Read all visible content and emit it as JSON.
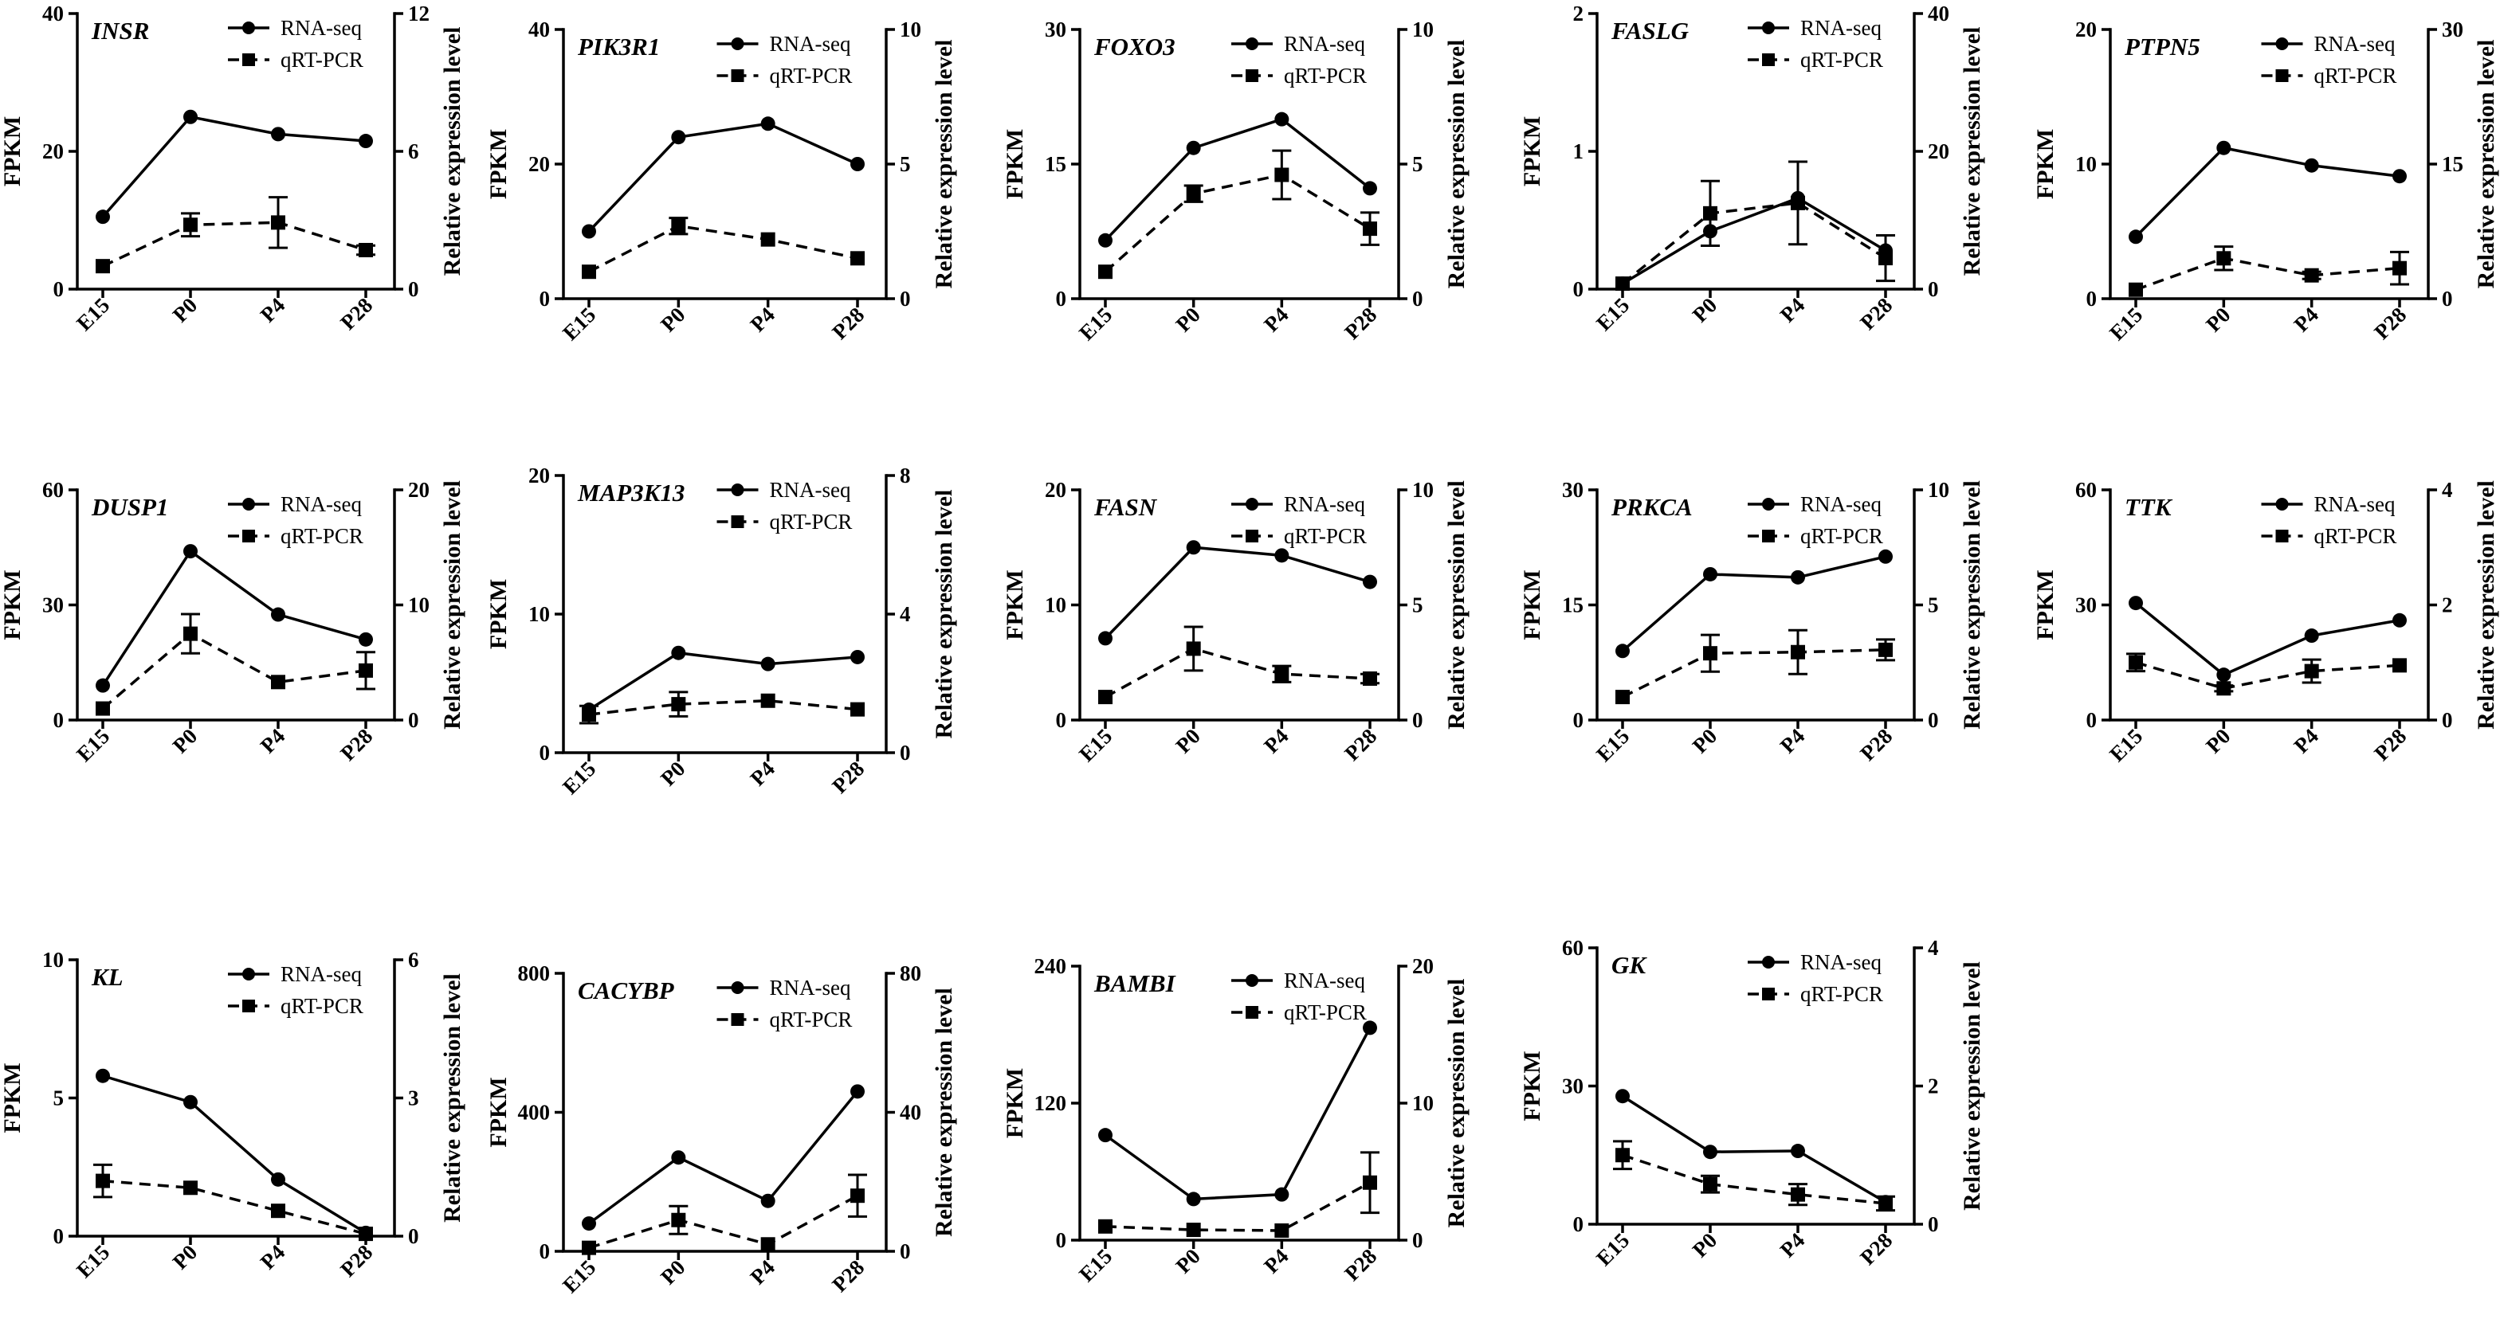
{
  "chart_data": [
    {
      "type": "line",
      "gene": "INSR",
      "categories": [
        "E15",
        "P0",
        "P4",
        "P28"
      ],
      "ylabel_left": "FPKM",
      "ylabel_right": "Relative expression level",
      "ylim_left": [
        0,
        40
      ],
      "yticks_left": [
        0,
        20,
        40
      ],
      "ylim_right": [
        0,
        12
      ],
      "yticks_right": [
        0,
        6,
        12
      ],
      "series": [
        {
          "name": "RNA-seq",
          "axis": "left",
          "values": [
            10.5,
            25,
            22.5,
            21.5
          ]
        },
        {
          "name": "qRT-PCR",
          "axis": "right",
          "values": [
            1.0,
            2.8,
            2.9,
            1.7
          ],
          "errors": [
            0,
            0.5,
            1.1,
            0.2
          ]
        }
      ]
    },
    {
      "type": "line",
      "gene": "PIK3R1",
      "categories": [
        "E15",
        "P0",
        "P4",
        "P28"
      ],
      "ylabel_left": "FPKM",
      "ylabel_right": "Relative expression level",
      "ylim_left": [
        0,
        40
      ],
      "yticks_left": [
        0,
        20,
        40
      ],
      "ylim_right": [
        0,
        10
      ],
      "yticks_right": [
        0,
        5,
        10
      ],
      "series": [
        {
          "name": "RNA-seq",
          "axis": "left",
          "values": [
            10,
            24,
            26,
            20
          ]
        },
        {
          "name": "qRT-PCR",
          "axis": "right",
          "values": [
            1.0,
            2.7,
            2.2,
            1.5
          ],
          "errors": [
            0,
            0.3,
            0,
            0
          ]
        }
      ]
    },
    {
      "type": "line",
      "gene": "FOXO3",
      "categories": [
        "E15",
        "P0",
        "P4",
        "P28"
      ],
      "ylabel_left": "FPKM",
      "ylabel_right": "Relative expression level",
      "ylim_left": [
        0,
        30
      ],
      "yticks_left": [
        0,
        15,
        30
      ],
      "ylim_right": [
        0,
        10
      ],
      "yticks_right": [
        0,
        5,
        10
      ],
      "series": [
        {
          "name": "RNA-seq",
          "axis": "left",
          "values": [
            6.5,
            16.8,
            20,
            12.3
          ]
        },
        {
          "name": "qRT-PCR",
          "axis": "right",
          "values": [
            1.0,
            3.9,
            4.6,
            2.6
          ],
          "errors": [
            0,
            0.3,
            0.9,
            0.6
          ]
        }
      ]
    },
    {
      "type": "line",
      "gene": "FASLG",
      "categories": [
        "E15",
        "P0",
        "P4",
        "P28"
      ],
      "ylabel_left": "FPKM",
      "ylabel_right": "Relative expression level",
      "ylim_left": [
        0,
        2
      ],
      "yticks_left": [
        0,
        1,
        2
      ],
      "ylim_right": [
        0,
        40
      ],
      "yticks_right": [
        0,
        20,
        40
      ],
      "series": [
        {
          "name": "RNA-seq",
          "axis": "left",
          "values": [
            0.04,
            0.42,
            0.66,
            0.28
          ]
        },
        {
          "name": "qRT-PCR",
          "axis": "right",
          "values": [
            0.8,
            11,
            12.5,
            4.5
          ],
          "errors": [
            0,
            4.7,
            6,
            3.3
          ]
        }
      ]
    },
    {
      "type": "line",
      "gene": "PTPN5",
      "categories": [
        "E15",
        "P0",
        "P4",
        "P28"
      ],
      "ylabel_left": "FPKM",
      "ylabel_right": "Relative expression level",
      "ylim_left": [
        0,
        20
      ],
      "yticks_left": [
        0,
        10,
        20
      ],
      "ylim_right": [
        0,
        30
      ],
      "yticks_right": [
        0,
        15,
        30
      ],
      "series": [
        {
          "name": "RNA-seq",
          "axis": "left",
          "values": [
            4.6,
            11.2,
            9.9,
            9.1
          ]
        },
        {
          "name": "qRT-PCR",
          "axis": "right",
          "values": [
            1.0,
            4.5,
            2.6,
            3.4
          ],
          "errors": [
            0,
            1.3,
            0.4,
            1.8
          ]
        }
      ]
    },
    {
      "type": "line",
      "gene": "DUSP1",
      "categories": [
        "E15",
        "P0",
        "P4",
        "P28"
      ],
      "ylabel_left": "FPKM",
      "ylabel_right": "Relative expression level",
      "ylim_left": [
        0,
        60
      ],
      "yticks_left": [
        0,
        30,
        60
      ],
      "ylim_right": [
        0,
        20
      ],
      "yticks_right": [
        0,
        10,
        20
      ],
      "series": [
        {
          "name": "RNA-seq",
          "axis": "left",
          "values": [
            9,
            44,
            27.5,
            21
          ]
        },
        {
          "name": "qRT-PCR",
          "axis": "right",
          "values": [
            1.0,
            7.5,
            3.3,
            4.3
          ],
          "errors": [
            0,
            1.7,
            0,
            1.6
          ]
        }
      ]
    },
    {
      "type": "line",
      "gene": "MAP3K13",
      "categories": [
        "E15",
        "P0",
        "P4",
        "P28"
      ],
      "ylabel_left": "FPKM",
      "ylabel_right": "Relative expression level",
      "ylim_left": [
        0,
        20
      ],
      "yticks_left": [
        0,
        10,
        20
      ],
      "ylim_right": [
        0,
        8
      ],
      "yticks_right": [
        0,
        4,
        8
      ],
      "series": [
        {
          "name": "RNA-seq",
          "axis": "left",
          "values": [
            3.1,
            7.2,
            6.4,
            6.9
          ]
        },
        {
          "name": "qRT-PCR",
          "axis": "right",
          "values": [
            1.1,
            1.4,
            1.5,
            1.25
          ],
          "errors": [
            0.25,
            0.35,
            0,
            0
          ]
        }
      ]
    },
    {
      "type": "line",
      "gene": "FASN",
      "categories": [
        "E15",
        "P0",
        "P4",
        "P28"
      ],
      "ylabel_left": "FPKM",
      "ylabel_right": "Relative expression level",
      "ylim_left": [
        0,
        20
      ],
      "yticks_left": [
        0,
        10,
        20
      ],
      "ylim_right": [
        0,
        10
      ],
      "yticks_right": [
        0,
        5,
        10
      ],
      "series": [
        {
          "name": "RNA-seq",
          "axis": "left",
          "values": [
            7.1,
            15,
            14.3,
            12
          ]
        },
        {
          "name": "qRT-PCR",
          "axis": "right",
          "values": [
            1.0,
            3.1,
            2.0,
            1.8
          ],
          "errors": [
            0,
            0.95,
            0.35,
            0.2
          ]
        }
      ]
    },
    {
      "type": "line",
      "gene": "PRKCA",
      "categories": [
        "E15",
        "P0",
        "P4",
        "P28"
      ],
      "ylabel_left": "FPKM",
      "ylabel_right": "Relative expression level",
      "ylim_left": [
        0,
        30
      ],
      "yticks_left": [
        0,
        15,
        30
      ],
      "ylim_right": [
        0,
        10
      ],
      "yticks_right": [
        0,
        5,
        10
      ],
      "series": [
        {
          "name": "RNA-seq",
          "axis": "left",
          "values": [
            9,
            19,
            18.6,
            21.3
          ]
        },
        {
          "name": "qRT-PCR",
          "axis": "right",
          "values": [
            1.0,
            2.9,
            2.95,
            3.05
          ],
          "errors": [
            0,
            0.8,
            0.95,
            0.45
          ]
        }
      ]
    },
    {
      "type": "line",
      "gene": "TTK",
      "categories": [
        "E15",
        "P0",
        "P4",
        "P28"
      ],
      "ylabel_left": "FPKM",
      "ylabel_right": "Relative expression level",
      "ylim_left": [
        0,
        60
      ],
      "yticks_left": [
        0,
        30,
        60
      ],
      "ylim_right": [
        0,
        4
      ],
      "yticks_right": [
        0,
        2,
        4
      ],
      "series": [
        {
          "name": "RNA-seq",
          "axis": "left",
          "values": [
            30.5,
            11.8,
            22,
            26
          ]
        },
        {
          "name": "qRT-PCR",
          "axis": "right",
          "values": [
            1.0,
            0.55,
            0.85,
            0.95
          ],
          "errors": [
            0.15,
            0.05,
            0.2,
            0
          ]
        }
      ]
    },
    {
      "type": "line",
      "gene": "KL",
      "categories": [
        "E15",
        "P0",
        "P4",
        "P28"
      ],
      "ylabel_left": "FPKM",
      "ylabel_right": "Relative expression level",
      "ylim_left": [
        0,
        10
      ],
      "yticks_left": [
        0,
        5,
        10
      ],
      "ylim_right": [
        0,
        6
      ],
      "yticks_right": [
        0,
        3,
        6
      ],
      "series": [
        {
          "name": "RNA-seq",
          "axis": "left",
          "values": [
            5.8,
            4.85,
            2.05,
            0.12
          ]
        },
        {
          "name": "qRT-PCR",
          "axis": "right",
          "values": [
            1.2,
            1.05,
            0.55,
            0.05
          ],
          "errors": [
            0.35,
            0,
            0,
            0
          ]
        }
      ]
    },
    {
      "type": "line",
      "gene": "CACYBP",
      "categories": [
        "E15",
        "P0",
        "P4",
        "P28"
      ],
      "ylabel_left": "FPKM",
      "ylabel_right": "Relative expression level",
      "ylim_left": [
        0,
        800
      ],
      "yticks_left": [
        0,
        400,
        800
      ],
      "ylim_right": [
        0,
        80
      ],
      "yticks_right": [
        0,
        40,
        80
      ],
      "series": [
        {
          "name": "RNA-seq",
          "axis": "left",
          "values": [
            80,
            270,
            145,
            460
          ]
        },
        {
          "name": "qRT-PCR",
          "axis": "right",
          "values": [
            1.0,
            9,
            2,
            16
          ],
          "errors": [
            0,
            4,
            0,
            6
          ]
        }
      ]
    },
    {
      "type": "line",
      "gene": "BAMBI",
      "categories": [
        "E15",
        "P0",
        "P4",
        "P28"
      ],
      "ylabel_left": "FPKM",
      "ylabel_right": "Relative expression level",
      "ylim_left": [
        0,
        240
      ],
      "yticks_left": [
        0,
        120,
        240
      ],
      "ylim_right": [
        0,
        20
      ],
      "yticks_right": [
        0,
        10,
        20
      ],
      "series": [
        {
          "name": "RNA-seq",
          "axis": "left",
          "values": [
            92,
            36,
            40,
            186
          ]
        },
        {
          "name": "qRT-PCR",
          "axis": "right",
          "values": [
            1.0,
            0.75,
            0.7,
            4.2
          ],
          "errors": [
            0,
            0,
            0,
            2.2
          ]
        }
      ]
    },
    {
      "type": "line",
      "gene": "GK",
      "categories": [
        "E15",
        "P0",
        "P4",
        "P28"
      ],
      "ylabel_left": "FPKM",
      "ylabel_right": "Relative expression level",
      "ylim_left": [
        0,
        60
      ],
      "yticks_left": [
        0,
        30,
        60
      ],
      "ylim_right": [
        0,
        4
      ],
      "yticks_right": [
        0,
        2,
        4
      ],
      "series": [
        {
          "name": "RNA-seq",
          "axis": "left",
          "values": [
            27.8,
            15.7,
            15.9,
            4.8
          ]
        },
        {
          "name": "qRT-PCR",
          "axis": "right",
          "values": [
            1.0,
            0.58,
            0.43,
            0.3
          ],
          "errors": [
            0.2,
            0.12,
            0.15,
            0.1
          ]
        }
      ]
    }
  ]
}
